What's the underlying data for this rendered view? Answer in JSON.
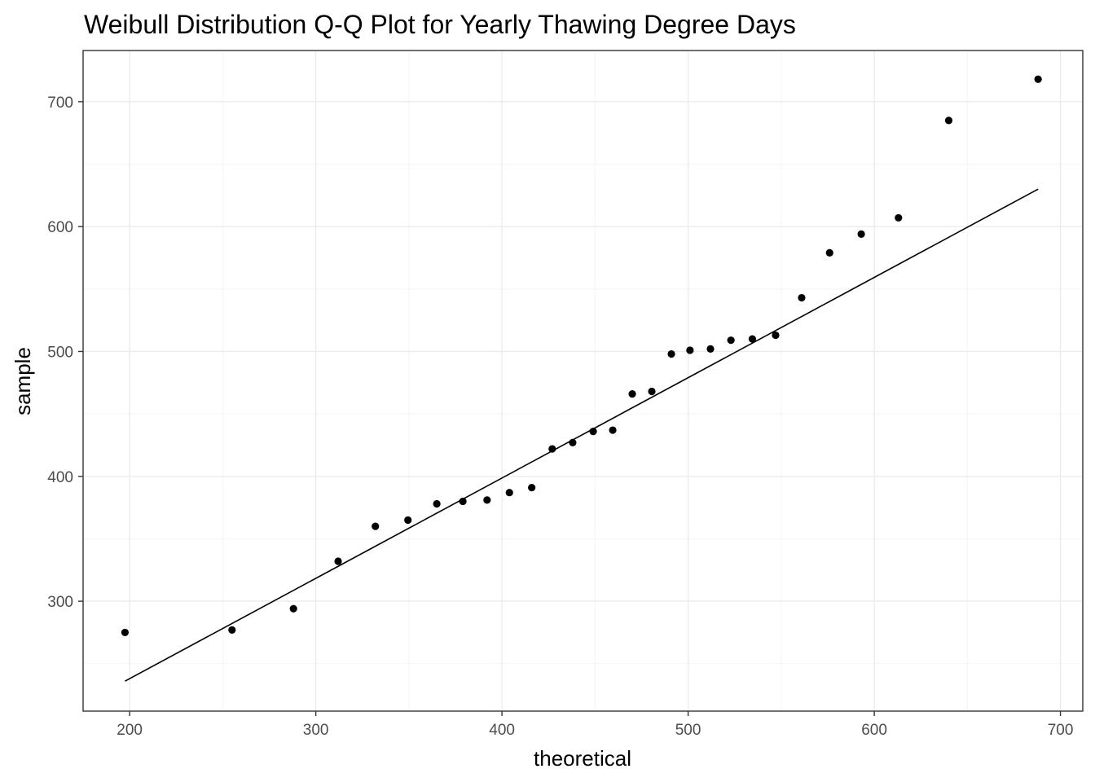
{
  "chart_data": {
    "type": "scatter",
    "title": "Weibull Distribution Q-Q Plot for Yearly Thawing Degree Days",
    "xlabel": "theoretical",
    "ylabel": "sample",
    "xlim": [
      175,
      712
    ],
    "ylim": [
      212,
      741
    ],
    "x_ticks": [
      200,
      300,
      400,
      500,
      600,
      700
    ],
    "y_ticks": [
      300,
      400,
      500,
      600,
      700
    ],
    "x_tick_labels": [
      "200",
      "300",
      "400",
      "500",
      "600",
      "700"
    ],
    "y_tick_labels": [
      "300",
      "400",
      "500",
      "600",
      "700"
    ],
    "grid": true,
    "points": [
      {
        "x": 197.5,
        "y": 275
      },
      {
        "x": 255,
        "y": 277
      },
      {
        "x": 288,
        "y": 294
      },
      {
        "x": 312,
        "y": 332
      },
      {
        "x": 332,
        "y": 360
      },
      {
        "x": 349.5,
        "y": 365
      },
      {
        "x": 365,
        "y": 378
      },
      {
        "x": 379,
        "y": 380
      },
      {
        "x": 392,
        "y": 381
      },
      {
        "x": 404,
        "y": 387
      },
      {
        "x": 416,
        "y": 391
      },
      {
        "x": 427,
        "y": 422
      },
      {
        "x": 438,
        "y": 427
      },
      {
        "x": 449,
        "y": 436
      },
      {
        "x": 459.5,
        "y": 437
      },
      {
        "x": 470,
        "y": 466
      },
      {
        "x": 480.5,
        "y": 468
      },
      {
        "x": 491,
        "y": 498
      },
      {
        "x": 501,
        "y": 501
      },
      {
        "x": 512,
        "y": 502
      },
      {
        "x": 523,
        "y": 509
      },
      {
        "x": 534.5,
        "y": 510
      },
      {
        "x": 547,
        "y": 513
      },
      {
        "x": 561,
        "y": 543
      },
      {
        "x": 576,
        "y": 579
      },
      {
        "x": 593,
        "y": 594
      },
      {
        "x": 613,
        "y": 607
      },
      {
        "x": 640,
        "y": 685
      },
      {
        "x": 688,
        "y": 718
      }
    ],
    "reference_line": {
      "x": [
        197.5,
        688
      ],
      "y": [
        236,
        630
      ]
    }
  }
}
